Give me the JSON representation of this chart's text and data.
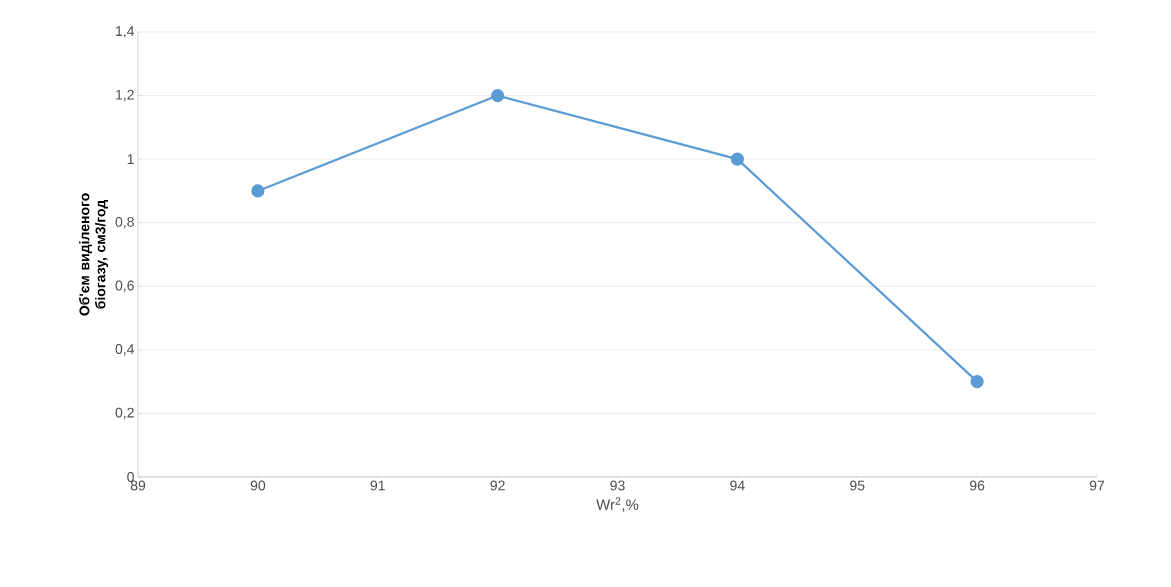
{
  "chart_data": {
    "type": "line",
    "xlabel": "Wr$^{2}$,%",
    "ylabel": "Об'єм виділеного біогазу, см3/год",
    "x": [
      90,
      92,
      94,
      96
    ],
    "series": [
      {
        "color": "#5b9bd5",
        "values": [
          0.9,
          1.2,
          1.0,
          0.3
        ]
      }
    ],
    "xlim": [
      89,
      97
    ],
    "xticks": [
      89,
      90,
      91,
      92,
      93,
      94,
      95,
      96,
      97
    ],
    "ylim": [
      0,
      1.4
    ],
    "yticks": [
      0,
      {
        "value": 0.2,
        "label": "0,2"
      },
      {
        "value": 0.4,
        "label": "0,4"
      },
      {
        "value": 0.6,
        "label": "0,6"
      },
      {
        "value": 0.8,
        "label": "0,8"
      },
      1,
      {
        "value": 1.2,
        "label": "1,2"
      },
      {
        "value": 1.4,
        "label": "1,4"
      }
    ],
    "grid": "y",
    "marker": "circle",
    "line_style": "solid"
  }
}
